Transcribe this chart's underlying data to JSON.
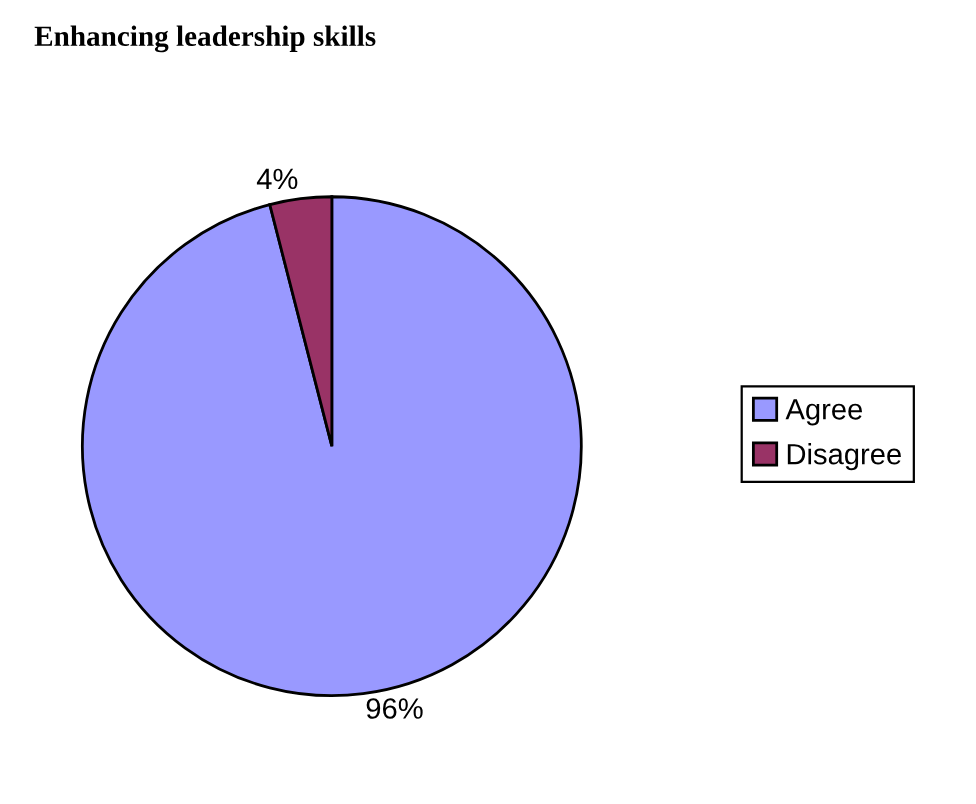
{
  "chart_data": {
    "type": "pie",
    "title": "Enhancing leadership skills",
    "categories": [
      "Agree",
      "Disagree"
    ],
    "values": [
      96,
      4
    ],
    "value_labels": [
      "96%",
      "4%"
    ],
    "colors": [
      "#9999ff",
      "#993366"
    ],
    "legend": "right"
  }
}
